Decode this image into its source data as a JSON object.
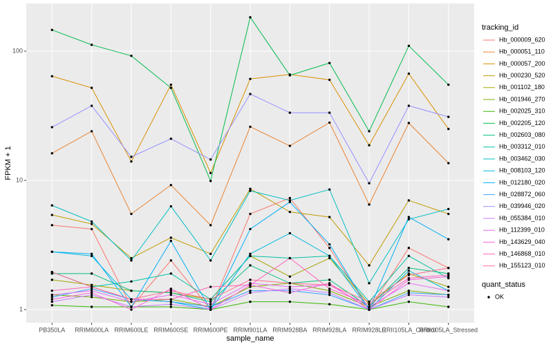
{
  "chart_data": {
    "type": "line",
    "x_label": "sample_name",
    "y_label": "FPKM + 1",
    "log_y": true,
    "grid": true,
    "ylim": [
      0.791,
      234
    ],
    "yticks": [
      1,
      10,
      100
    ],
    "legend_title": "tracking_id",
    "legend_position": "right",
    "point_color": "#000000",
    "point_legend": {
      "title": "quant_status",
      "labels": [
        "OK"
      ]
    },
    "categories": [
      "PB350LA",
      "RRIM600LA",
      "RRIM600LE",
      "RRIM600SE",
      "RRIM600PE",
      "RRIM901LA",
      "RRIM928BA",
      "RRIM928LA",
      "RRIM928LE",
      "RRII105LA_Control",
      "RRII105LA_Stressed"
    ],
    "series": [
      {
        "name": "Hb_000009_620",
        "color": "#F8766D",
        "values": [
          4.5,
          4.2,
          1.05,
          2.4,
          1.0,
          5.5,
          7.3,
          3.0,
          1.0,
          3.0,
          2.1
        ]
      },
      {
        "name": "Hb_000051_110",
        "color": "#EA8331",
        "values": [
          16.2,
          24,
          5.5,
          9.2,
          4.5,
          26,
          18.5,
          28,
          6.5,
          27.8,
          13.6
        ]
      },
      {
        "name": "Hb_000057_200",
        "color": "#D89000",
        "values": [
          64,
          52,
          14,
          55,
          11.4,
          61,
          66,
          60,
          18.7,
          67,
          25
        ]
      },
      {
        "name": "Hb_000230_520",
        "color": "#C09B00",
        "values": [
          5.4,
          4.6,
          2.5,
          3.6,
          2.7,
          8.6,
          5.7,
          5.2,
          2.2,
          7.0,
          5.5
        ]
      },
      {
        "name": "Hb_001102_180",
        "color": "#A3A500",
        "values": [
          1.7,
          1.55,
          1.4,
          1.35,
          1.2,
          2.6,
          1.8,
          2.5,
          1.1,
          1.9,
          1.5
        ]
      },
      {
        "name": "Hb_001946_270",
        "color": "#7CAE00",
        "values": [
          1.3,
          1.25,
          1.15,
          1.2,
          1.05,
          1.5,
          1.6,
          1.4,
          1.05,
          1.4,
          1.3
        ]
      },
      {
        "name": "Hb_002025_310",
        "color": "#39B600",
        "values": [
          1.08,
          1.05,
          1.05,
          1.05,
          1.0,
          1.15,
          1.15,
          1.1,
          1.0,
          1.15,
          1.05
        ]
      },
      {
        "name": "Hb_002205_120",
        "color": "#00BB4E",
        "values": [
          146,
          112,
          92,
          52,
          9.9,
          183,
          65,
          81,
          24,
          110,
          55
        ]
      },
      {
        "name": "Hb_002603_080",
        "color": "#00BF7D",
        "values": [
          1.9,
          1.9,
          1.4,
          1.35,
          1.15,
          2.2,
          1.6,
          1.7,
          1.05,
          2.1,
          1.9
        ]
      },
      {
        "name": "Hb_003312_010",
        "color": "#00C1A3",
        "values": [
          1.95,
          1.5,
          1.65,
          1.9,
          1.2,
          2.6,
          2.5,
          2.6,
          1.15,
          2.6,
          1.75
        ]
      },
      {
        "name": "Hb_003462_030",
        "color": "#00BFC4",
        "values": [
          6.4,
          4.8,
          2.4,
          6.3,
          2.4,
          8.3,
          7.0,
          8.5,
          1.6,
          5.0,
          6.0
        ]
      },
      {
        "name": "Hb_008103_120",
        "color": "#00BAE0",
        "values": [
          2.8,
          2.6,
          1.2,
          1.15,
          1.0,
          2.7,
          3.9,
          2.6,
          1.0,
          2.0,
          1.4
        ]
      },
      {
        "name": "Hb_012180_020",
        "color": "#00B0F6",
        "values": [
          2.8,
          2.7,
          1.05,
          3.4,
          1.0,
          4.2,
          6.8,
          3.2,
          1.0,
          5.2,
          3.5
        ]
      },
      {
        "name": "Hb_028872_060",
        "color": "#35A2FF",
        "values": [
          1.25,
          1.45,
          1.2,
          1.15,
          1.05,
          1.4,
          1.4,
          1.3,
          1.0,
          1.35,
          1.3
        ]
      },
      {
        "name": "Hb_039946_020",
        "color": "#9590FF",
        "values": [
          25.8,
          37.8,
          15.2,
          21,
          14.5,
          46.6,
          33.4,
          33.4,
          9.5,
          37.8,
          31
        ]
      },
      {
        "name": "Hb_055384_010",
        "color": "#C77CFF",
        "values": [
          1.15,
          1.3,
          1.05,
          1.1,
          1.0,
          1.35,
          1.45,
          1.35,
          1.0,
          1.3,
          1.25
        ]
      },
      {
        "name": "Hb_112399_010",
        "color": "#E76BF3",
        "values": [
          1.3,
          1.4,
          1.15,
          1.3,
          1.1,
          1.6,
          1.5,
          1.55,
          1.05,
          1.6,
          1.4
        ]
      },
      {
        "name": "Hb_143629_040",
        "color": "#FA62DB",
        "values": [
          1.2,
          1.35,
          1.0,
          1.45,
          1.0,
          1.55,
          1.35,
          1.6,
          1.0,
          1.7,
          1.8
        ]
      },
      {
        "name": "Hb_146868_010",
        "color": "#FF62BC",
        "values": [
          1.4,
          1.5,
          1.2,
          1.2,
          1.5,
          1.55,
          2.5,
          1.45,
          1.1,
          1.75,
          1.85
        ]
      },
      {
        "name": "Hb_155123_010",
        "color": "#FF6C91",
        "values": [
          1.95,
          1.5,
          1.2,
          1.4,
          1.2,
          1.7,
          1.6,
          1.55,
          1.15,
          1.85,
          2.1
        ]
      }
    ]
  }
}
